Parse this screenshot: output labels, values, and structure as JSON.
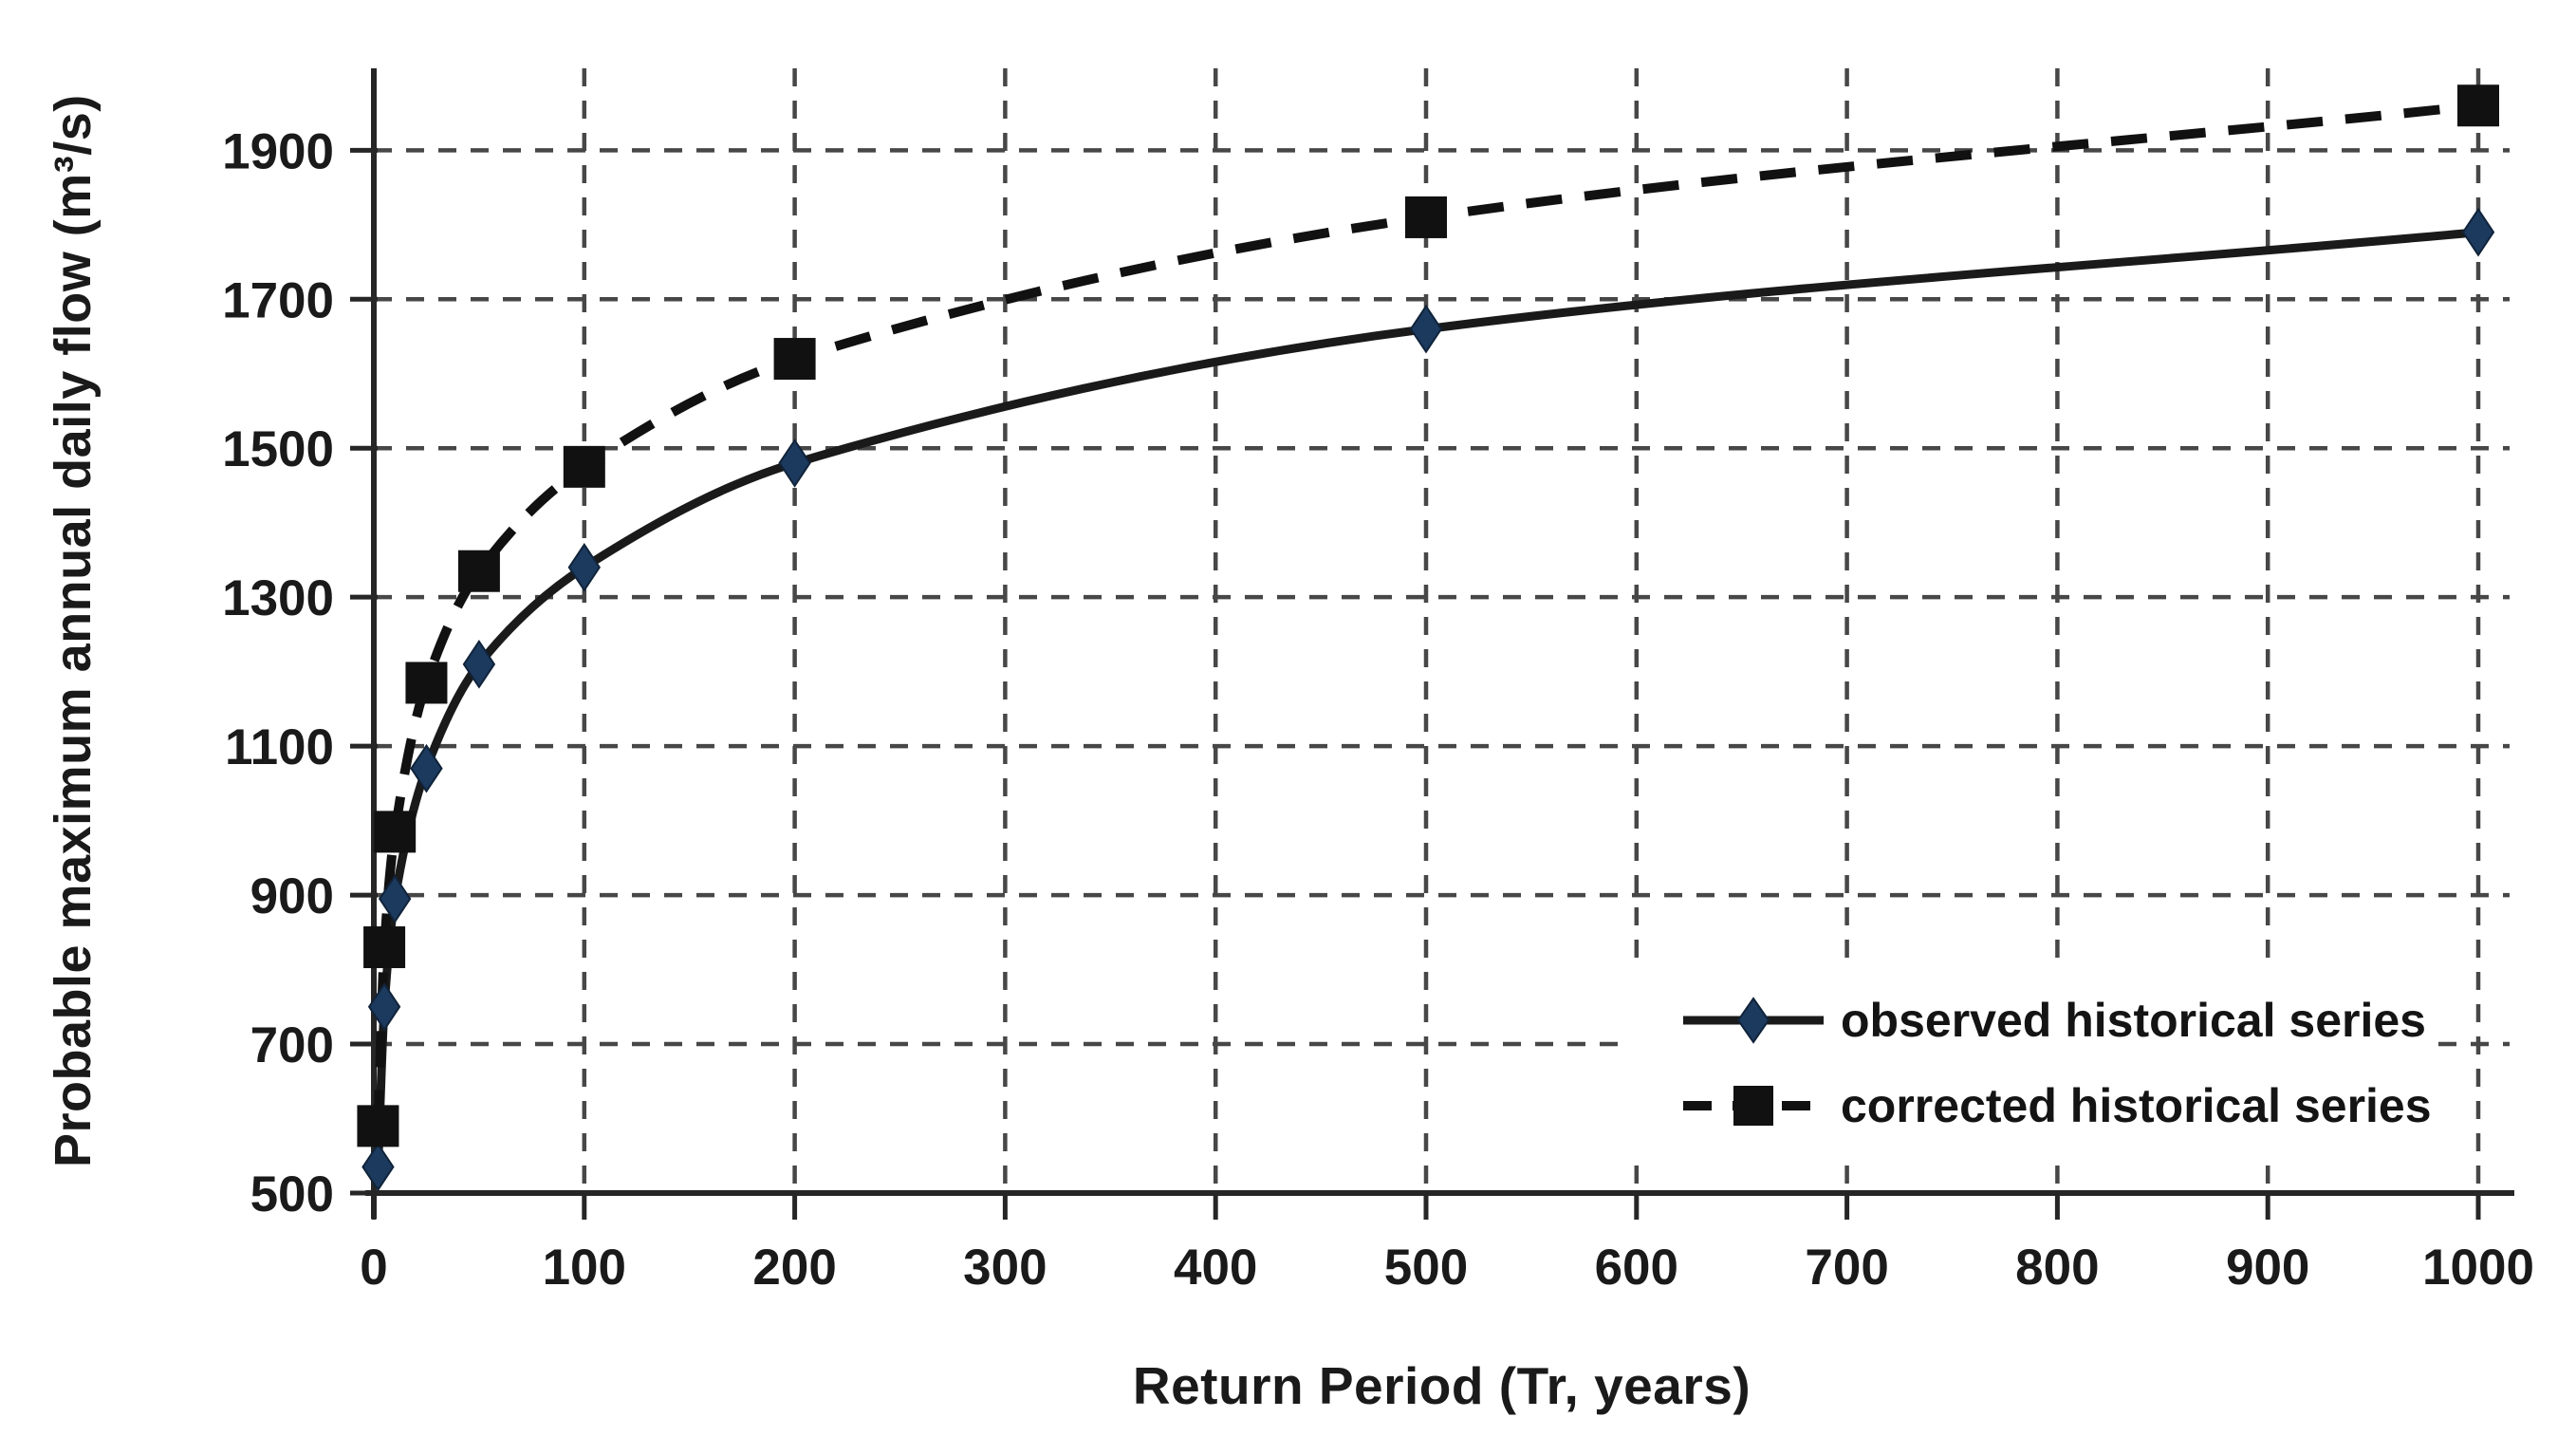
{
  "chart_data": {
    "type": "line",
    "title": "",
    "xlabel": "Return Period (Tr, years)",
    "ylabel": "Probable maximum annual daily flow (m³/s)",
    "x": [
      2,
      5,
      10,
      25,
      50,
      100,
      200,
      500,
      1000
    ],
    "series": [
      {
        "name": "observed historical series",
        "values": [
          535,
          750,
          895,
          1070,
          1210,
          1340,
          1480,
          1660,
          1790
        ],
        "line_style": "solid",
        "marker": "diamond",
        "line_color": "#1a1a1a",
        "marker_color": "#1c3a5e"
      },
      {
        "name": "corrected historical series",
        "values": [
          590,
          830,
          985,
          1185,
          1335,
          1475,
          1620,
          1810,
          1960
        ],
        "line_style": "dashed",
        "marker": "square",
        "line_color": "#111111",
        "marker_color": "#111111"
      }
    ],
    "x_ticks": [
      0,
      100,
      200,
      300,
      400,
      500,
      600,
      700,
      800,
      900,
      1000
    ],
    "y_ticks": [
      500,
      700,
      900,
      1100,
      1300,
      1500,
      1700,
      1900
    ],
    "xlim": [
      0,
      1000
    ],
    "ylim": [
      500,
      2010
    ],
    "grid": true,
    "grid_style": "dashed",
    "legend_position": "inside-bottom-right",
    "colors": {
      "background": "#ffffff",
      "axis": "#262626",
      "grid": "#474747",
      "text": "#1a1a1a"
    }
  }
}
